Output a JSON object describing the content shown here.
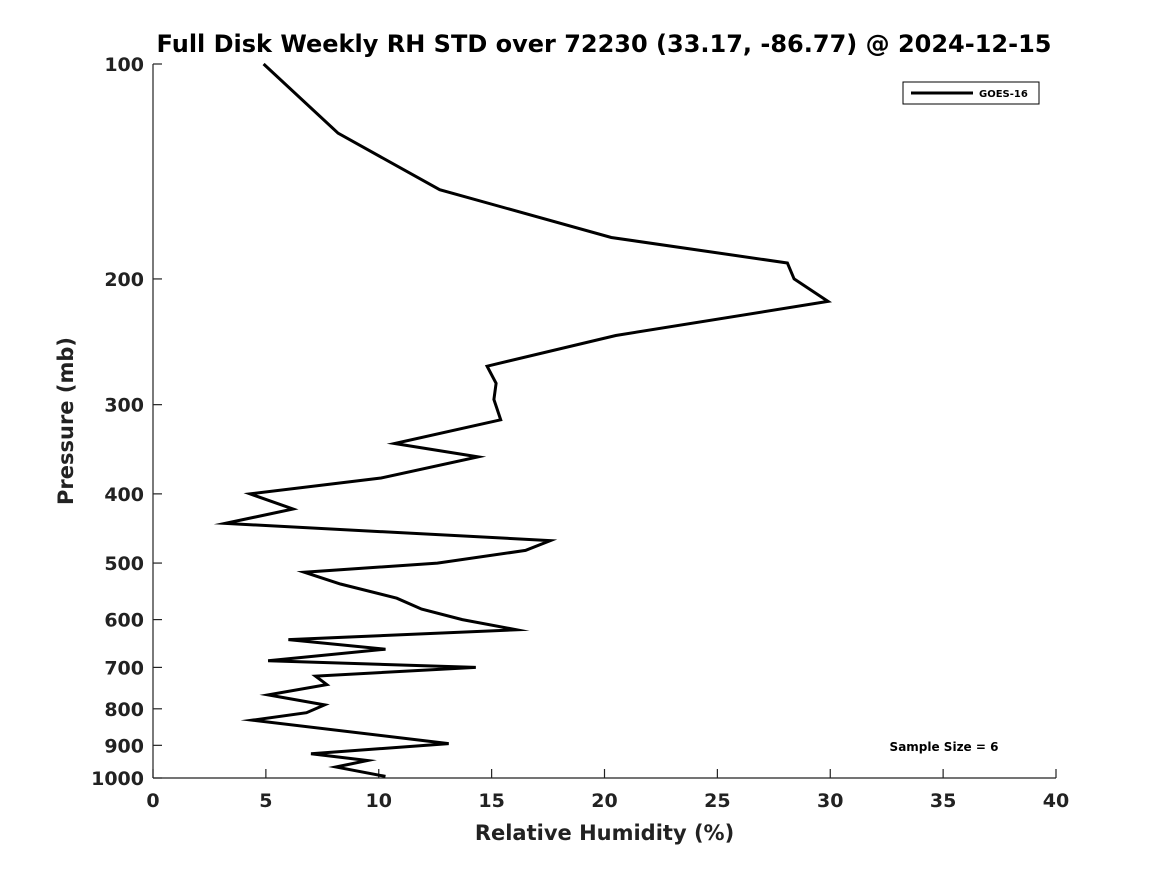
{
  "chart_data": {
    "type": "line",
    "title": "Full Disk Weekly RH STD over 72230 (33.17, -86.77) @ 2024-12-15",
    "xlabel": "Relative Humidity (%)",
    "ylabel": "Pressure (mb)",
    "xlim": [
      0,
      40
    ],
    "ylim": [
      100,
      1000
    ],
    "y_scale": "log",
    "y_reversed": true,
    "grid": false,
    "x_ticks": [
      0,
      5,
      10,
      15,
      20,
      25,
      30,
      35,
      40
    ],
    "y_ticks": [
      100,
      200,
      300,
      400,
      500,
      600,
      700,
      800,
      900,
      1000
    ],
    "legend": {
      "position": "top-right",
      "entries": [
        "GOES-16"
      ]
    },
    "annotations": [
      {
        "text": "Sample Size = 6",
        "position": "bottom-right"
      }
    ],
    "series": [
      {
        "name": "GOES-16",
        "color": "#000000",
        "points": [
          [
            4.9,
            100
          ],
          [
            8.2,
            125
          ],
          [
            12.7,
            150
          ],
          [
            20.3,
            175
          ],
          [
            28.1,
            190
          ],
          [
            28.4,
            200
          ],
          [
            29.9,
            215
          ],
          [
            20.5,
            240
          ],
          [
            14.8,
            265
          ],
          [
            15.2,
            280
          ],
          [
            15.1,
            295
          ],
          [
            15.4,
            315
          ],
          [
            10.7,
            340
          ],
          [
            14.4,
            355
          ],
          [
            10.1,
            380
          ],
          [
            4.3,
            400
          ],
          [
            6.2,
            420
          ],
          [
            3.2,
            440
          ],
          [
            17.6,
            465
          ],
          [
            16.5,
            480
          ],
          [
            12.6,
            500
          ],
          [
            6.7,
            515
          ],
          [
            8.3,
            535
          ],
          [
            10.8,
            560
          ],
          [
            11.9,
            580
          ],
          [
            13.7,
            600
          ],
          [
            16.1,
            620
          ],
          [
            6.0,
            640
          ],
          [
            10.3,
            660
          ],
          [
            5.1,
            685
          ],
          [
            14.3,
            700
          ],
          [
            7.2,
            720
          ],
          [
            7.7,
            740
          ],
          [
            5.1,
            765
          ],
          [
            7.6,
            790
          ],
          [
            6.8,
            810
          ],
          [
            4.4,
            830
          ],
          [
            13.1,
            895
          ],
          [
            7.0,
            925
          ],
          [
            9.5,
            945
          ],
          [
            8.1,
            965
          ],
          [
            10.3,
            995
          ]
        ]
      }
    ]
  }
}
